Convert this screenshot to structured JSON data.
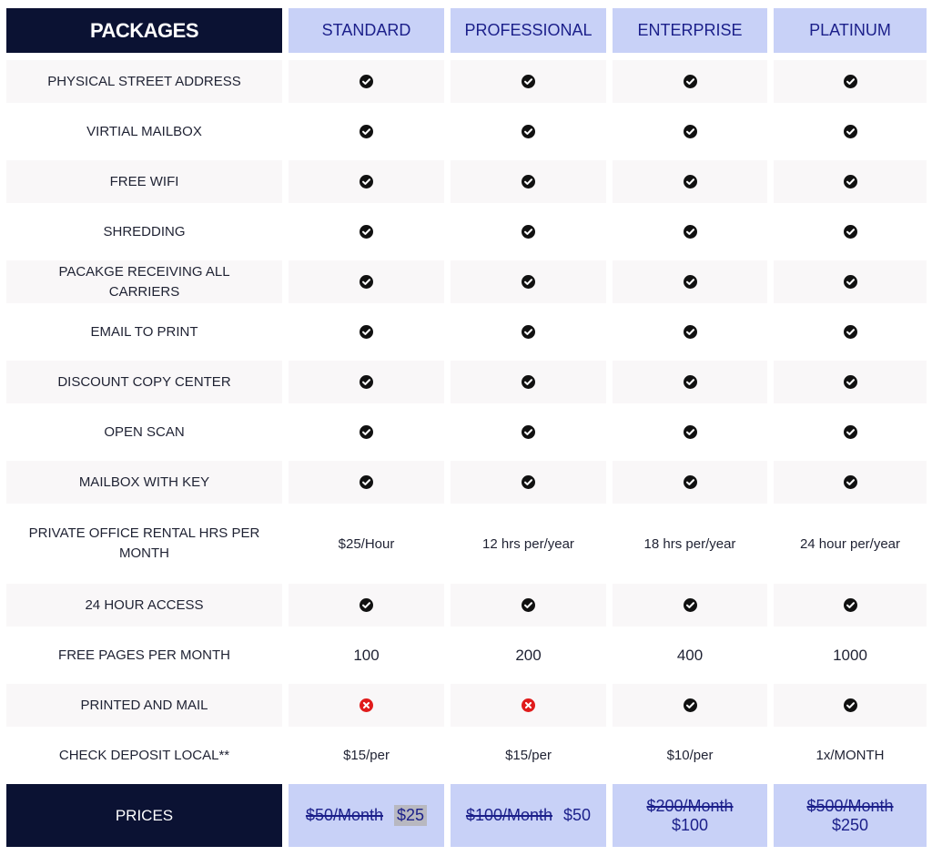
{
  "header": {
    "title": "PACKAGES",
    "plans": [
      "STANDARD",
      "PROFESSIONAL",
      "ENTERPRISE",
      "PLATINUM"
    ]
  },
  "rows": [
    {
      "feature": "PHYSICAL STREET ADDRESS",
      "values": [
        "check",
        "check",
        "check",
        "check"
      ]
    },
    {
      "feature": "VIRTIAL MAILBOX",
      "values": [
        "check",
        "check",
        "check",
        "check"
      ]
    },
    {
      "feature": "FREE WIFI",
      "values": [
        "check",
        "check",
        "check",
        "check"
      ]
    },
    {
      "feature": "SHREDDING",
      "values": [
        "check",
        "check",
        "check",
        "check"
      ]
    },
    {
      "feature": "PACAKGE RECEIVING ALL CARRIERS",
      "values": [
        "check",
        "check",
        "check",
        "check"
      ]
    },
    {
      "feature": "EMAIL TO PRINT",
      "values": [
        "check",
        "check",
        "check",
        "check"
      ]
    },
    {
      "feature": "DISCOUNT COPY CENTER",
      "values": [
        "check",
        "check",
        "check",
        "check"
      ]
    },
    {
      "feature": "OPEN SCAN",
      "values": [
        "check",
        "check",
        "check",
        "check"
      ]
    },
    {
      "feature": "MAILBOX WITH KEY",
      "values": [
        "check",
        "check",
        "check",
        "check"
      ]
    },
    {
      "feature": "PRIVATE OFFICE RENTAL HRS PER MONTH",
      "values": [
        "$25/Hour",
        "12 hrs per/year",
        "18 hrs per/year",
        "24 hour per/year"
      ]
    },
    {
      "feature": "24 HOUR ACCESS",
      "values": [
        "check",
        "check",
        "check",
        "check"
      ]
    },
    {
      "feature": "FREE PAGES PER MONTH",
      "values": [
        "100",
        "200",
        "400",
        "1000"
      ]
    },
    {
      "feature": "PRINTED AND MAIL",
      "values": [
        "cross",
        "cross",
        "check",
        "check"
      ]
    },
    {
      "feature": "CHECK DEPOSIT LOCAL**",
      "values": [
        "$15/per",
        "$15/per",
        "$10/per",
        "1x/MONTH"
      ]
    }
  ],
  "prices": {
    "label": "PRICES",
    "plans": [
      {
        "old": "$50/Month",
        "new": "$25"
      },
      {
        "old": "$100/Month",
        "new": "$50"
      },
      {
        "old": "$200/Month",
        "new": "$100"
      },
      {
        "old": "$500/Month",
        "new": "$250"
      }
    ]
  },
  "icons": {
    "check": "check-circle-icon",
    "cross": "x-circle-icon"
  },
  "colors": {
    "header_dark": "#0b1233",
    "plan_header": "#c8d1f7",
    "plan_text": "#1b1f8a",
    "row_shade": "#f9f7f8",
    "cross": "#e01b1b",
    "check": "#111111"
  }
}
